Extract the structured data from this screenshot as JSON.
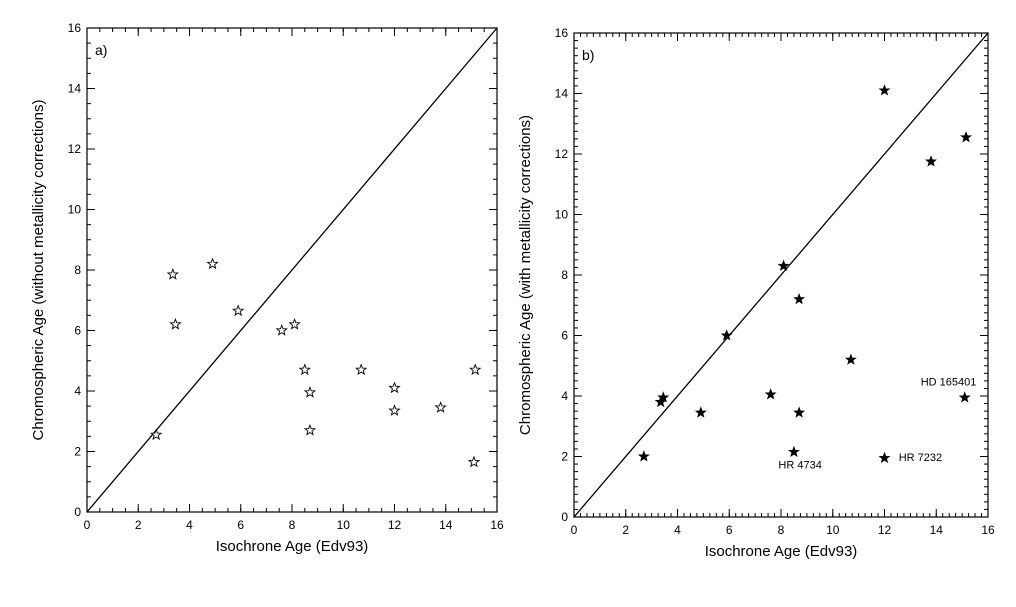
{
  "chart_data": [
    {
      "type": "scatter",
      "panel_label": "a)",
      "xlabel": "Isochrone Age (Edv93)",
      "ylabel": "Chromospheric Age (without metallicity corrections)",
      "xlim": [
        0,
        16
      ],
      "ylim": [
        0,
        16
      ],
      "x_ticks": [
        "0",
        "2",
        "4",
        "6",
        "8",
        "10",
        "12",
        "14",
        "16"
      ],
      "y_ticks": [
        "0",
        "2",
        "4",
        "6",
        "8",
        "10",
        "12",
        "14",
        "16"
      ],
      "reference_line": "y = x",
      "marker": "open-star",
      "points": [
        {
          "x": 2.7,
          "y": 2.55
        },
        {
          "x": 3.35,
          "y": 7.85
        },
        {
          "x": 3.45,
          "y": 6.2
        },
        {
          "x": 4.9,
          "y": 8.2
        },
        {
          "x": 5.9,
          "y": 6.65
        },
        {
          "x": 7.6,
          "y": 6.0
        },
        {
          "x": 8.1,
          "y": 6.2
        },
        {
          "x": 8.5,
          "y": 4.7
        },
        {
          "x": 8.7,
          "y": 3.95
        },
        {
          "x": 8.7,
          "y": 2.7
        },
        {
          "x": 10.7,
          "y": 4.7
        },
        {
          "x": 12.0,
          "y": 4.1
        },
        {
          "x": 12.0,
          "y": 3.35
        },
        {
          "x": 13.8,
          "y": 3.45
        },
        {
          "x": 15.15,
          "y": 4.7
        },
        {
          "x": 15.1,
          "y": 1.65
        }
      ],
      "annotations": []
    },
    {
      "type": "scatter",
      "panel_label": "b)",
      "xlabel": "Isochrone Age (Edv93)",
      "ylabel": "Chromospheric Age (with metallicity corrections)",
      "xlim": [
        0,
        16
      ],
      "ylim": [
        0,
        16
      ],
      "x_ticks": [
        "0",
        "2",
        "4",
        "6",
        "8",
        "10",
        "12",
        "14",
        "16"
      ],
      "y_ticks": [
        "0",
        "2",
        "4",
        "6",
        "8",
        "10",
        "12",
        "14",
        "16"
      ],
      "reference_line": "y = x",
      "marker": "filled-star",
      "points": [
        {
          "x": 2.7,
          "y": 2.0
        },
        {
          "x": 3.35,
          "y": 3.8
        },
        {
          "x": 3.45,
          "y": 3.95
        },
        {
          "x": 4.9,
          "y": 3.45
        },
        {
          "x": 5.9,
          "y": 6.0
        },
        {
          "x": 7.6,
          "y": 4.05
        },
        {
          "x": 8.1,
          "y": 8.3
        },
        {
          "x": 8.5,
          "y": 2.15
        },
        {
          "x": 8.7,
          "y": 7.2
        },
        {
          "x": 8.7,
          "y": 3.45
        },
        {
          "x": 10.7,
          "y": 5.2
        },
        {
          "x": 12.0,
          "y": 14.1
        },
        {
          "x": 12.0,
          "y": 1.95
        },
        {
          "x": 13.8,
          "y": 11.75
        },
        {
          "x": 15.15,
          "y": 12.55
        },
        {
          "x": 15.1,
          "y": 3.95
        }
      ],
      "annotations": [
        {
          "text": "HD 165401",
          "x": 13.4,
          "y": 4.35
        },
        {
          "text": "HR  4734",
          "x": 7.9,
          "y": 1.6
        },
        {
          "text": "HR  7232",
          "x": 12.55,
          "y": 1.85
        }
      ]
    }
  ]
}
